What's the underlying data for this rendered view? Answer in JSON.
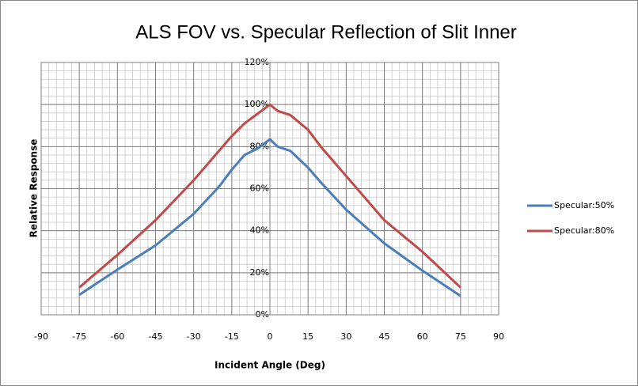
{
  "chart_data": {
    "type": "line",
    "title": "ALS FOV vs. Specular Reflection of Slit Inner",
    "x_label": "Incident Angle  (Deg)",
    "y_label": "Relative Response",
    "x": [
      -75,
      -60,
      -45,
      -30,
      -20,
      -15,
      -10,
      -5,
      0,
      3,
      8,
      15,
      20,
      30,
      45,
      60,
      75
    ],
    "series": [
      {
        "name": "Specular:50%",
        "color": "#4a7ebb",
        "values": [
          9.5,
          21.5,
          33,
          48,
          61,
          69,
          76,
          79,
          83.5,
          80,
          78,
          70,
          63,
          50,
          34,
          21,
          9
        ]
      },
      {
        "name": "Specular:80%",
        "color": "#be4b48",
        "values": [
          13,
          28.5,
          45,
          64,
          78,
          85,
          91,
          95.5,
          100,
          97,
          95,
          88,
          80,
          66,
          45,
          30,
          13
        ]
      }
    ],
    "xlim": [
      -90,
      90
    ],
    "xticks": [
      -90,
      -75,
      -60,
      -45,
      -30,
      -15,
      0,
      15,
      30,
      45,
      60,
      75,
      90
    ],
    "ylim": [
      0,
      120
    ],
    "yticks": [
      {
        "value": 0,
        "label": "0%"
      },
      {
        "value": 20,
        "label": "20%"
      },
      {
        "value": 40,
        "label": "40%"
      },
      {
        "value": 60,
        "label": "60%"
      },
      {
        "value": 80,
        "label": "80%"
      },
      {
        "value": 100,
        "label": "100%"
      },
      {
        "value": 120,
        "label": "120%"
      }
    ],
    "grid": true,
    "minor_grid": {
      "x": 3,
      "y": 4
    },
    "legend": "right"
  }
}
